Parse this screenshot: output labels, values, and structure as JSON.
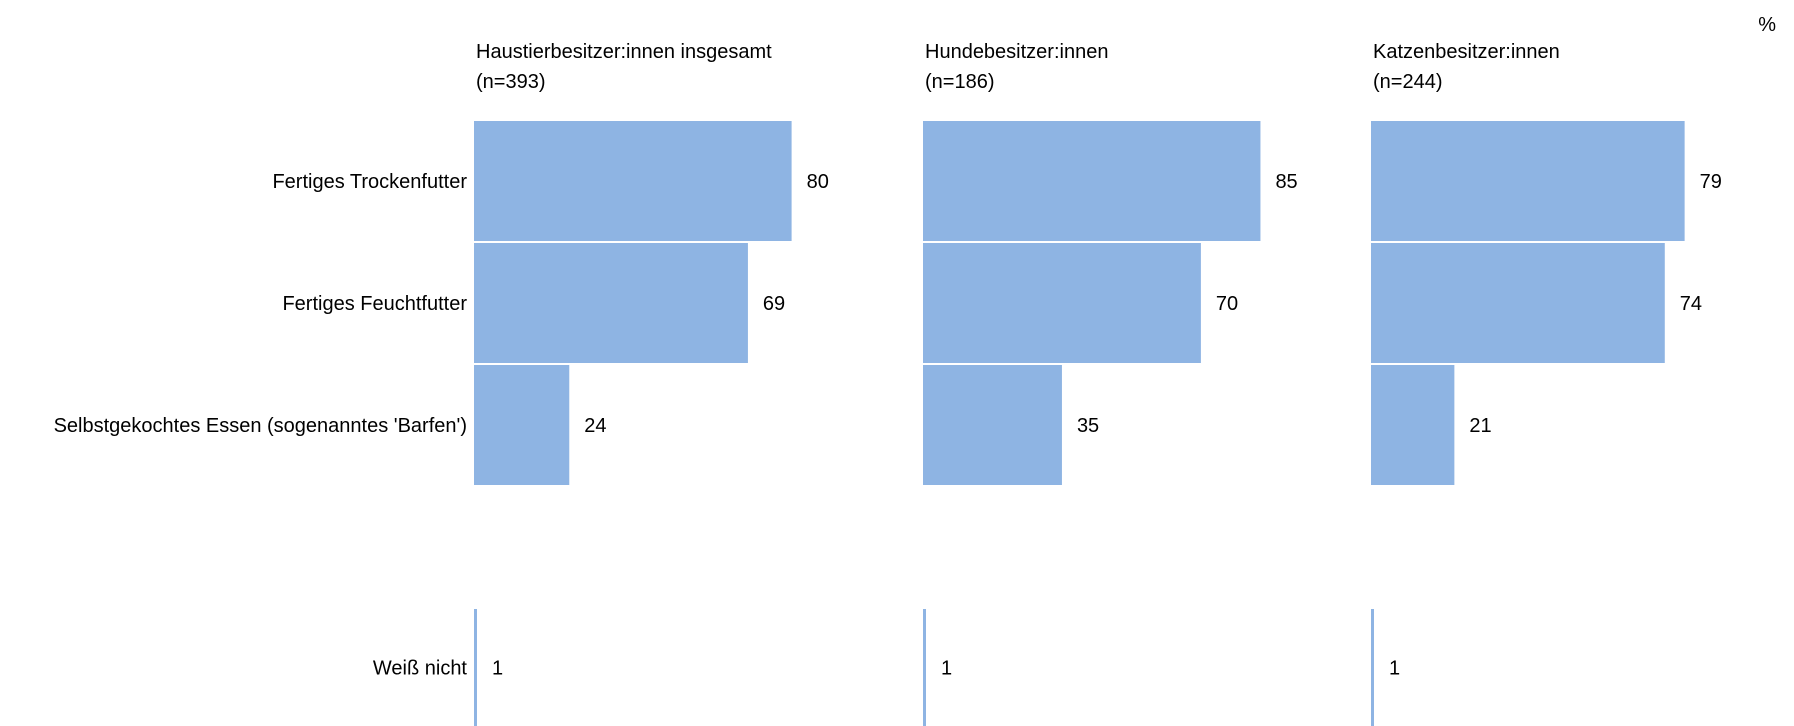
{
  "chart_data": {
    "type": "bar",
    "orientation": "horizontal",
    "unit_label": "%",
    "bar_color": "#8EB4E3",
    "categories": [
      "Fertiges Trockenfutter",
      "Fertiges Feuchtfutter",
      "Selbstgekochtes Essen (sogenanntes 'Barfen')",
      "Weiß nicht"
    ],
    "panels": [
      {
        "title": "Haustierbesitzer:innen insgesamt",
        "n": "(n=393)",
        "values": [
          80,
          69,
          24,
          1
        ]
      },
      {
        "title": "Hundebesitzer:innen",
        "n": "(n=186)",
        "values": [
          85,
          70,
          35,
          1
        ]
      },
      {
        "title": "Katzenbesitzer:innen",
        "n": "(n=244)",
        "values": [
          79,
          74,
          21,
          1
        ]
      }
    ],
    "xlim": [
      0,
      100
    ],
    "grid": false,
    "legend": "none"
  }
}
